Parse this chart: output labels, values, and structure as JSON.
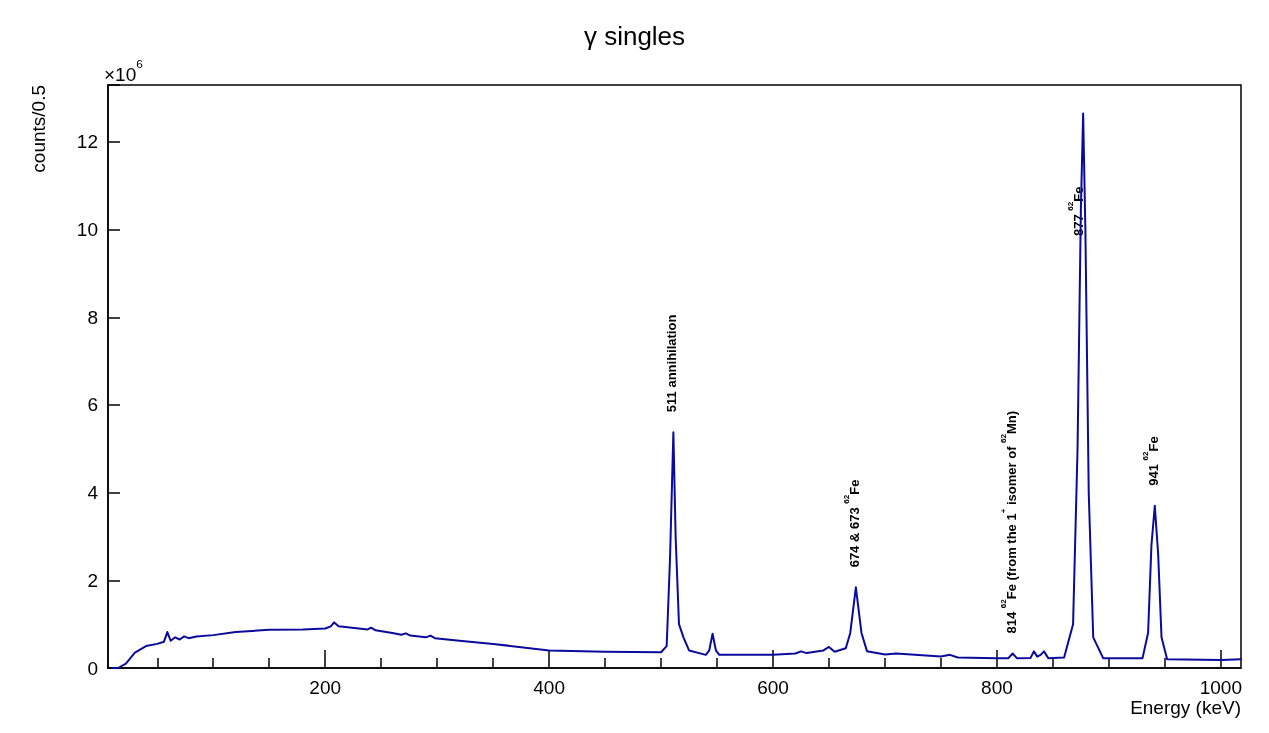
{
  "chart_data": {
    "type": "line",
    "title": "γ singles",
    "xlabel": "Energy (keV)",
    "ylabel": "counts/0.5",
    "xlim": [
      6,
      1018
    ],
    "xticks": [
      200,
      400,
      600,
      800,
      1000
    ],
    "ylim": [
      0,
      13.3
    ],
    "yticks": [
      0,
      2,
      4,
      6,
      8,
      10,
      12
    ],
    "grid": false,
    "marker": "none",
    "line_style": "solid",
    "annotations": [
      "×10$^{6}$",
      {
        "text": "511 annihilation",
        "x": 511,
        "y": 5.38
      },
      {
        "text": "674 & 673 $^{62}$Fe",
        "x": 674,
        "y": 1.84
      },
      {
        "text": "814 $^{62}$Fe (from the 1$^{+}$ isomer of $^{62}$Mn)",
        "x": 814,
        "y": 0.33
      },
      {
        "text": "877 $^{62}$Fe",
        "x": 874,
        "y": 9.4
      },
      {
        "text": "941 $^{62}$Fe",
        "x": 941,
        "y": 3.7
      }
    ],
    "series": [
      {
        "color": "#0a0a9c",
        "x": [
          10,
          15,
          22,
          30,
          40,
          50,
          56,
          59,
          62,
          66,
          70,
          74,
          78,
          85,
          100,
          120,
          150,
          180,
          200,
          205,
          208,
          212,
          230,
          238,
          241,
          245,
          260,
          268,
          272,
          276,
          290,
          294,
          298,
          320,
          350,
          400,
          450,
          500,
          505,
          508,
          511,
          513,
          516,
          520,
          525,
          540,
          543,
          546,
          549,
          552,
          600,
          620,
          625,
          630,
          645,
          650,
          655,
          665,
          669,
          674,
          679,
          684,
          700,
          710,
          750,
          758,
          765,
          800,
          810,
          814,
          818,
          830,
          833,
          836,
          839,
          842,
          846,
          860,
          868,
          872,
          875,
          877,
          879,
          882,
          886,
          895,
          930,
          935,
          938,
          941,
          944,
          947,
          952,
          1000,
          1018
        ],
        "values": [
          0,
          0,
          0.1,
          0.35,
          0.5,
          0.55,
          0.6,
          0.82,
          0.62,
          0.7,
          0.65,
          0.72,
          0.68,
          0.72,
          0.75,
          0.82,
          0.87,
          0.88,
          0.9,
          0.95,
          1.04,
          0.95,
          0.9,
          0.88,
          0.92,
          0.86,
          0.8,
          0.76,
          0.79,
          0.74,
          0.7,
          0.74,
          0.68,
          0.62,
          0.55,
          0.4,
          0.37,
          0.36,
          0.5,
          2.5,
          5.38,
          3.0,
          1.0,
          0.7,
          0.4,
          0.3,
          0.4,
          0.78,
          0.4,
          0.3,
          0.3,
          0.33,
          0.38,
          0.34,
          0.4,
          0.48,
          0.37,
          0.45,
          0.8,
          1.84,
          0.8,
          0.38,
          0.31,
          0.33,
          0.26,
          0.3,
          0.24,
          0.22,
          0.22,
          0.33,
          0.22,
          0.23,
          0.38,
          0.26,
          0.3,
          0.38,
          0.22,
          0.24,
          1.0,
          5.0,
          10.5,
          12.65,
          10.0,
          4.0,
          0.7,
          0.22,
          0.22,
          0.8,
          2.8,
          3.7,
          2.6,
          0.7,
          0.2,
          0.18,
          0.2
        ]
      }
    ]
  }
}
